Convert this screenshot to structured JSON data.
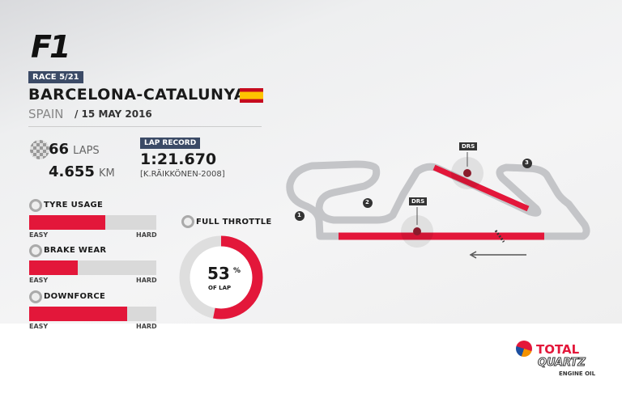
{
  "brand": "F1",
  "race_badge": "RACE 5/21",
  "circuit": "BARCELONA-CATALUNYA",
  "country": "SPAIN",
  "date": "/ 15 MAY 2016",
  "laps": {
    "value": "66",
    "unit": "LAPS"
  },
  "distance": {
    "value": "4.655",
    "unit": "KM"
  },
  "lap_record": {
    "label": "LAP RECORD",
    "time": "1:21.670",
    "holder": "[K.RÄIKKÖNEN-2008]"
  },
  "metrics": [
    {
      "label": "TYRE USAGE",
      "level": 0.6,
      "easy": "EASY",
      "hard": "HARD",
      "icon": "tyre-icon"
    },
    {
      "label": "BRAKE WEAR",
      "level": 0.38,
      "easy": "EASY",
      "hard": "HARD",
      "icon": "brake-icon"
    },
    {
      "label": "DOWNFORCE",
      "level": 0.77,
      "easy": "EASY",
      "hard": "HARD",
      "icon": "wing-icon"
    }
  ],
  "full_throttle": {
    "label": "FULL THROTTLE",
    "value": "53",
    "percent": "%",
    "sub": "OF LAP",
    "fraction": 0.53
  },
  "track": {
    "drs": [
      "DRS",
      "DRS"
    ],
    "corners": [
      "1",
      "2",
      "3"
    ]
  },
  "sponsor": {
    "name": "TOTAL",
    "product": "QUARTZ",
    "tagline": "ENGINE OIL"
  },
  "colors": {
    "accent": "#e3173a",
    "badge": "#3b4a66",
    "track": "#c4c5c8"
  }
}
